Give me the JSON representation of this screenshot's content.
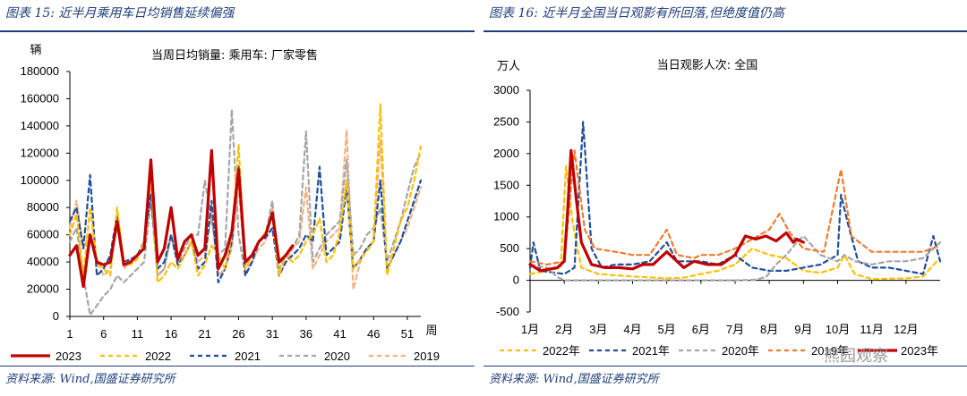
{
  "left": {
    "panel_title": "图表 15:  近半月乘用车日均销售延续偏强",
    "source": "资料来源: Wind,国盛证券研究所",
    "chart_data": {
      "type": "line",
      "title": "当周日均销量: 乘用车: 厂家零售",
      "ylabel": "辆",
      "xlabel": "周",
      "ylim": [
        0,
        180000
      ],
      "yticks": [
        0,
        20000,
        40000,
        60000,
        80000,
        100000,
        120000,
        140000,
        160000,
        180000
      ],
      "xlim": [
        1,
        53
      ],
      "xticks": [
        1,
        6,
        11,
        16,
        21,
        26,
        31,
        36,
        41,
        46,
        51
      ],
      "legend_position": "bottom",
      "series": [
        {
          "name": "2023",
          "color": "#c00000",
          "width": 3.2,
          "dash": "",
          "values": [
            45000,
            52000,
            22000,
            60000,
            40000,
            38000,
            40000,
            70000,
            38000,
            40000,
            45000,
            50000,
            115000,
            40000,
            50000,
            80000,
            42000,
            55000,
            60000,
            45000,
            50000,
            122000,
            35000,
            45000,
            62000,
            108000,
            40000,
            45000,
            55000,
            60000,
            76000,
            40000,
            45000,
            52000
          ]
        },
        {
          "name": "2022",
          "color": "#ffc000",
          "width": 2.2,
          "dash": "5,4",
          "values": [
            60000,
            75000,
            30000,
            80000,
            40000,
            35000,
            30000,
            80000,
            40000,
            38000,
            42000,
            55000,
            105000,
            25000,
            30000,
            40000,
            35000,
            45000,
            55000,
            30000,
            38000,
            52000,
            45000,
            35000,
            60000,
            126000,
            35000,
            45000,
            55000,
            62000,
            75000,
            30000,
            45000,
            40000,
            45000,
            55000,
            60000,
            72000,
            40000,
            45000,
            62000,
            100000,
            35000,
            42000,
            48000,
            55000,
            156000,
            30000,
            50000,
            70000,
            80000,
            100000,
            125000
          ]
        },
        {
          "name": "2021",
          "color": "#1f4e9a",
          "width": 2.2,
          "dash": "5,4",
          "values": [
            70000,
            80000,
            50000,
            104000,
            30000,
            35000,
            45000,
            75000,
            40000,
            42000,
            45000,
            55000,
            90000,
            35000,
            40000,
            60000,
            38000,
            45000,
            55000,
            35000,
            40000,
            85000,
            25000,
            35000,
            55000,
            110000,
            30000,
            40000,
            55000,
            58000,
            65000,
            30000,
            40000,
            45000,
            50000,
            60000,
            55000,
            110000,
            45000,
            50000,
            55000,
            95000,
            35000,
            42000,
            50000,
            55000,
            100000,
            35000,
            45000,
            55000,
            70000,
            85000,
            100000
          ]
        },
        {
          "name": "2020",
          "color": "#a6a6a6",
          "width": 2.2,
          "dash": "5,4",
          "values": [
            55000,
            65000,
            30000,
            1000,
            8000,
            15000,
            20000,
            30000,
            25000,
            30000,
            35000,
            40000,
            85000,
            30000,
            35000,
            60000,
            40000,
            50000,
            60000,
            60000,
            100000,
            70000,
            45000,
            50000,
            152000,
            60000,
            30000,
            40000,
            55000,
            60000,
            85000,
            35000,
            45000,
            50000,
            60000,
            136000,
            40000,
            50000,
            60000,
            65000,
            70000,
            115000,
            45000,
            50000,
            60000,
            65000,
            80000,
            40000,
            55000,
            70000,
            90000,
            110000,
            120000
          ]
        },
        {
          "name": "2019",
          "color": "#f4b183",
          "width": 2.2,
          "dash": "5,4",
          "values": [
            65000,
            85000,
            50000,
            60000,
            40000,
            30000,
            35000,
            70000,
            35000,
            40000,
            45000,
            50000,
            95000,
            30000,
            35000,
            60000,
            40000,
            45000,
            55000,
            40000,
            45000,
            75000,
            30000,
            35000,
            50000,
            95000,
            35000,
            40000,
            50000,
            55000,
            80000,
            30000,
            40000,
            50000,
            55000,
            95000,
            35000,
            45000,
            55000,
            60000,
            65000,
            137000,
            20000,
            40000,
            50000,
            55000,
            130000,
            35000,
            45000,
            55000,
            65000,
            80000,
            95000
          ]
        }
      ]
    }
  },
  "right": {
    "panel_title": "图表 16:  近半月全国当日观影有所回落,但绝度值仍高",
    "source": "资料来源: Wind,国盛证券研究所",
    "watermark": "熊园观察",
    "chart_data": {
      "type": "line",
      "title": "当日观影人次: 全国",
      "ylabel": "万人",
      "ylim": [
        -500,
        3000
      ],
      "yticks": [
        -500,
        0,
        500,
        1000,
        1500,
        2000,
        2500,
        3000
      ],
      "xlim": [
        1,
        13
      ],
      "xticks": [
        "1月",
        "2月",
        "3月",
        "4月",
        "5月",
        "6月",
        "7月",
        "8月",
        "9月",
        "10月",
        "11月",
        "12月"
      ],
      "legend_position": "bottom",
      "series": [
        {
          "name": "2022年",
          "color": "#ffc000",
          "width": 2.2,
          "dash": "5,4",
          "points": [
            [
              1,
              100
            ],
            [
              1.5,
              150
            ],
            [
              1.9,
              200
            ],
            [
              2.05,
              1800
            ],
            [
              2.25,
              900
            ],
            [
              2.5,
              200
            ],
            [
              3,
              100
            ],
            [
              4,
              60
            ],
            [
              5,
              30
            ],
            [
              5.5,
              40
            ],
            [
              6,
              100
            ],
            [
              6.5,
              150
            ],
            [
              7,
              250
            ],
            [
              7.5,
              500
            ],
            [
              8,
              400
            ],
            [
              8.5,
              350
            ],
            [
              9,
              150
            ],
            [
              9.5,
              120
            ],
            [
              10,
              200
            ],
            [
              10.2,
              400
            ],
            [
              10.5,
              100
            ],
            [
              11,
              20
            ],
            [
              12,
              30
            ],
            [
              12.5,
              60
            ],
            [
              12.9,
              300
            ]
          ]
        },
        {
          "name": "2021年",
          "color": "#1f4e9a",
          "width": 2.2,
          "dash": "5,4",
          "points": [
            [
              1,
              200
            ],
            [
              1.1,
              600
            ],
            [
              1.3,
              150
            ],
            [
              2,
              100
            ],
            [
              2.3,
              200
            ],
            [
              2.55,
              2500
            ],
            [
              2.8,
              500
            ],
            [
              3.1,
              200
            ],
            [
              3.5,
              250
            ],
            [
              4,
              250
            ],
            [
              4.5,
              300
            ],
            [
              5,
              600
            ],
            [
              5.3,
              300
            ],
            [
              5.7,
              300
            ],
            [
              6,
              300
            ],
            [
              6.5,
              250
            ],
            [
              7,
              400
            ],
            [
              7.5,
              200
            ],
            [
              8,
              150
            ],
            [
              8.5,
              150
            ],
            [
              9,
              200
            ],
            [
              9.5,
              250
            ],
            [
              10,
              400
            ],
            [
              10.1,
              1350
            ],
            [
              10.3,
              900
            ],
            [
              10.6,
              300
            ],
            [
              11,
              200
            ],
            [
              11.5,
              200
            ],
            [
              12,
              150
            ],
            [
              12.5,
              100
            ],
            [
              12.8,
              700
            ],
            [
              13,
              300
            ]
          ]
        },
        {
          "name": "2020年",
          "color": "#a6a6a6",
          "width": 2.2,
          "dash": "5,4",
          "points": [
            [
              1,
              250
            ],
            [
              1.5,
              200
            ],
            [
              1.8,
              50
            ],
            [
              2,
              0
            ],
            [
              3,
              0
            ],
            [
              4,
              0
            ],
            [
              5,
              0
            ],
            [
              6,
              0
            ],
            [
              7,
              0
            ],
            [
              7.6,
              10
            ],
            [
              7.9,
              50
            ],
            [
              8.2,
              250
            ],
            [
              8.5,
              400
            ],
            [
              8.8,
              600
            ],
            [
              9,
              700
            ],
            [
              9.5,
              400
            ],
            [
              10,
              300
            ],
            [
              10.2,
              400
            ],
            [
              10.5,
              300
            ],
            [
              11,
              250
            ],
            [
              11.5,
              300
            ],
            [
              12,
              300
            ],
            [
              12.5,
              350
            ],
            [
              13,
              600
            ]
          ]
        },
        {
          "name": "2019年",
          "color": "#ed7d31",
          "width": 2.2,
          "dash": "5,4",
          "points": [
            [
              1,
              300
            ],
            [
              1.5,
              250
            ],
            [
              2,
              300
            ],
            [
              2.3,
              2050
            ],
            [
              2.6,
              800
            ],
            [
              2.9,
              500
            ],
            [
              3.5,
              450
            ],
            [
              4,
              400
            ],
            [
              4.5,
              400
            ],
            [
              5,
              800
            ],
            [
              5.3,
              400
            ],
            [
              5.8,
              350
            ],
            [
              6,
              400
            ],
            [
              6.5,
              400
            ],
            [
              7,
              500
            ],
            [
              7.5,
              650
            ],
            [
              8,
              800
            ],
            [
              8.3,
              1050
            ],
            [
              8.6,
              750
            ],
            [
              9,
              500
            ],
            [
              9.6,
              450
            ],
            [
              10.1,
              1750
            ],
            [
              10.4,
              700
            ],
            [
              11,
              450
            ],
            [
              12,
              450
            ],
            [
              12.5,
              450
            ],
            [
              13,
              550
            ]
          ]
        },
        {
          "name": "2023年",
          "color": "#c00000",
          "width": 3.2,
          "dash": "",
          "points": [
            [
              1,
              250
            ],
            [
              1.3,
              150
            ],
            [
              1.8,
              200
            ],
            [
              2,
              300
            ],
            [
              2.1,
              1100
            ],
            [
              2.2,
              2050
            ],
            [
              2.35,
              1300
            ],
            [
              2.5,
              600
            ],
            [
              2.8,
              250
            ],
            [
              3.2,
              200
            ],
            [
              3.6,
              200
            ],
            [
              4,
              180
            ],
            [
              4.3,
              250
            ],
            [
              4.6,
              250
            ],
            [
              5,
              450
            ],
            [
              5.3,
              300
            ],
            [
              5.5,
              200
            ],
            [
              5.8,
              300
            ],
            [
              6.2,
              250
            ],
            [
              6.6,
              250
            ],
            [
              7,
              400
            ],
            [
              7.3,
              700
            ],
            [
              7.6,
              650
            ],
            [
              7.9,
              700
            ],
            [
              8.2,
              620
            ],
            [
              8.5,
              750
            ],
            [
              8.7,
              600
            ],
            [
              8.8,
              650
            ],
            [
              9,
              600
            ]
          ]
        }
      ]
    }
  }
}
